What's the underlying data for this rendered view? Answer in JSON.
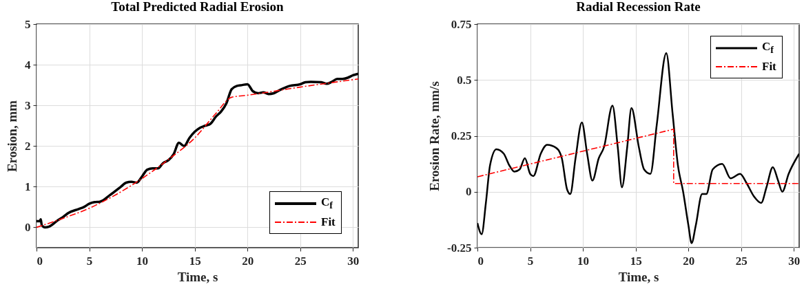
{
  "chart_data": [
    {
      "type": "line",
      "title": "Total Predicted Radial Erosion",
      "xlabel": "Time, s",
      "ylabel": "Erosion, mm",
      "xlim": [
        0,
        30.5
      ],
      "ylim": [
        -0.5,
        5
      ],
      "xticks": [
        0,
        5,
        10,
        15,
        20,
        25,
        30
      ],
      "yticks": [
        0,
        1,
        2,
        3,
        4,
        5
      ],
      "grid": true,
      "legend": "bottom right",
      "series": [
        {
          "name": "C$_{f}$",
          "color": "#000000",
          "line_style": "solid",
          "x": [
            0,
            0.3,
            0.4,
            0.5,
            0.8,
            1.2,
            2,
            2.5,
            3,
            4,
            4.5,
            5,
            5.5,
            6,
            7,
            8,
            8.5,
            9,
            9.5,
            10,
            10.5,
            11,
            11.5,
            12,
            12.5,
            13,
            13.5,
            14,
            14.5,
            15,
            15.5,
            16,
            16.5,
            17,
            17.5,
            18,
            18.5,
            19,
            19.5,
            20,
            20.5,
            21,
            21.5,
            22,
            22.5,
            23,
            24,
            25,
            25.5,
            26,
            27,
            27.5,
            28,
            28.5,
            29,
            29.5,
            30,
            30.5
          ],
          "values": [
            0.15,
            0.15,
            0.2,
            0.05,
            0,
            0.02,
            0.17,
            0.25,
            0.35,
            0.45,
            0.5,
            0.58,
            0.62,
            0.63,
            0.8,
            1,
            1.1,
            1.12,
            1.1,
            1.25,
            1.42,
            1.45,
            1.45,
            1.58,
            1.65,
            1.8,
            2.08,
            2,
            2.2,
            2.35,
            2.45,
            2.5,
            2.55,
            2.72,
            2.85,
            3.05,
            3.4,
            3.48,
            3.5,
            3.52,
            3.35,
            3.3,
            3.32,
            3.28,
            3.3,
            3.37,
            3.48,
            3.52,
            3.57,
            3.58,
            3.57,
            3.53,
            3.58,
            3.65,
            3.65,
            3.68,
            3.74,
            3.78
          ]
        },
        {
          "name": "Fit",
          "color": "#ff0000",
          "line_style": "dashed",
          "x": [
            0,
            2.5,
            5,
            7.5,
            10,
            12.5,
            15,
            17,
            18.5,
            20,
            25,
            30.5
          ],
          "values": [
            0,
            0.22,
            0.47,
            0.8,
            1.2,
            1.67,
            2.2,
            2.8,
            3.2,
            3.25,
            3.45,
            3.65
          ]
        }
      ]
    },
    {
      "type": "line",
      "title": "Radial Recession Rate",
      "xlabel": "Time, s",
      "ylabel": "Erosion Rate, mm/s",
      "xlim": [
        0,
        30.5
      ],
      "ylim": [
        -0.25,
        0.75
      ],
      "xticks": [
        0,
        5,
        10,
        15,
        20,
        25,
        30
      ],
      "yticks": [
        -0.25,
        0,
        0.25,
        0.5,
        0.75
      ],
      "grid": true,
      "legend": "top right",
      "series": [
        {
          "name": "C$_{f}$",
          "color": "#000000",
          "line_style": "solid",
          "x": [
            0,
            0.4,
            0.8,
            1.2,
            1.8,
            2.5,
            3,
            3.5,
            4,
            4.5,
            5,
            5.3,
            6,
            6.6,
            7.5,
            8,
            8.5,
            8.8,
            9.3,
            9.9,
            10.4,
            10.9,
            11.5,
            12,
            12.8,
            13.3,
            13.7,
            14.2,
            14.6,
            15.3,
            15.8,
            16.4,
            17,
            17.9,
            18.5,
            19,
            19.5,
            20,
            20.3,
            20.7,
            21.3,
            21.7,
            22.3,
            23.2,
            24,
            24.9,
            25.5,
            26.2,
            26.9,
            27.4,
            28,
            28.5,
            28.9,
            29.5,
            30.5
          ],
          "values": [
            -0.14,
            -0.19,
            -0.05,
            0.12,
            0.19,
            0.17,
            0.12,
            0.09,
            0.1,
            0.15,
            0.08,
            0.07,
            0.17,
            0.21,
            0.195,
            0.15,
            0.01,
            -0.01,
            0.15,
            0.31,
            0.17,
            0.05,
            0.15,
            0.2,
            0.385,
            0.2,
            0.02,
            0.2,
            0.375,
            0.2,
            0.1,
            0.08,
            0.3,
            0.62,
            0.35,
            0.12,
            0,
            -0.15,
            -0.23,
            -0.15,
            -0.01,
            -0.01,
            0.1,
            0.125,
            0.06,
            0.08,
            0.04,
            -0.02,
            -0.05,
            0.02,
            0.11,
            0.05,
            0,
            0.08,
            0.17
          ]
        },
        {
          "name": "Fit",
          "color": "#ff0000",
          "line_style": "dashed",
          "x": [
            0,
            18.6,
            18.6,
            30.5
          ],
          "values": [
            0.067,
            0.28,
            0.037,
            0.037
          ]
        }
      ]
    }
  ]
}
